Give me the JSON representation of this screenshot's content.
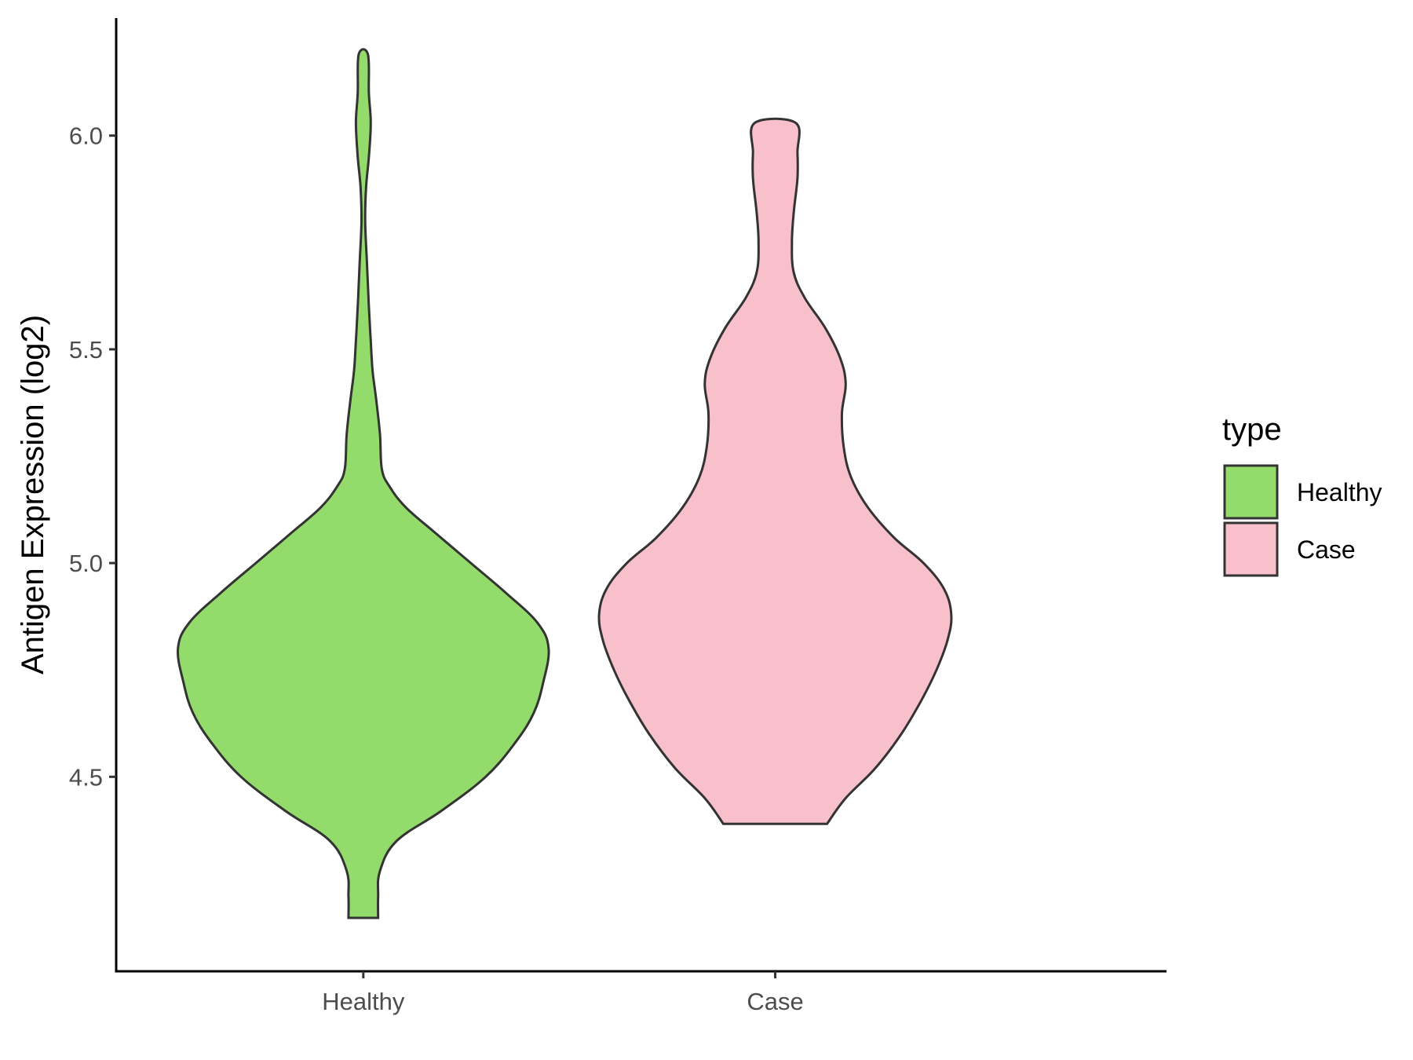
{
  "chart_data": {
    "type": "violin",
    "title": "",
    "xlabel": "",
    "ylabel": "Antigen Expression (log2)",
    "ylim": [
      4.045,
      6.275
    ],
    "y_ticks": [
      4.5,
      5.0,
      5.5,
      6.0
    ],
    "y_tick_labels": [
      "4.5",
      "5.0",
      "5.5",
      "6.0"
    ],
    "categories": [
      "Healthy",
      "Case"
    ],
    "grid": false,
    "legend": {
      "title": "type",
      "placement": "right",
      "entries": [
        "Healthy",
        "Case"
      ]
    },
    "series": [
      {
        "name": "Healthy",
        "color": "#93DB6B",
        "min": 4.17,
        "max": 6.19,
        "density_profile": [
          [
            4.17,
            0.08
          ],
          [
            4.22,
            0.08
          ],
          [
            4.28,
            0.09
          ],
          [
            4.35,
            0.18
          ],
          [
            4.42,
            0.42
          ],
          [
            4.5,
            0.66
          ],
          [
            4.58,
            0.82
          ],
          [
            4.65,
            0.92
          ],
          [
            4.72,
            0.97
          ],
          [
            4.8,
            1.0
          ],
          [
            4.86,
            0.94
          ],
          [
            4.93,
            0.77
          ],
          [
            5.0,
            0.58
          ],
          [
            5.07,
            0.39
          ],
          [
            5.13,
            0.23
          ],
          [
            5.18,
            0.14
          ],
          [
            5.22,
            0.1
          ],
          [
            5.3,
            0.09
          ],
          [
            5.38,
            0.07
          ],
          [
            5.45,
            0.05
          ],
          [
            5.52,
            0.04
          ],
          [
            5.6,
            0.03
          ],
          [
            5.7,
            0.02
          ],
          [
            5.8,
            0.01
          ],
          [
            5.88,
            0.015
          ],
          [
            5.95,
            0.03
          ],
          [
            6.03,
            0.04
          ],
          [
            6.1,
            0.03
          ],
          [
            6.19,
            0.025
          ]
        ]
      },
      {
        "name": "Case",
        "color": "#F8C0CB",
        "min": 4.39,
        "max": 6.03,
        "density_profile": [
          [
            4.39,
            0.28
          ],
          [
            4.45,
            0.38
          ],
          [
            4.52,
            0.54
          ],
          [
            4.6,
            0.68
          ],
          [
            4.68,
            0.79
          ],
          [
            4.75,
            0.87
          ],
          [
            4.82,
            0.93
          ],
          [
            4.88,
            0.95
          ],
          [
            4.94,
            0.91
          ],
          [
            5.0,
            0.8
          ],
          [
            5.06,
            0.64
          ],
          [
            5.13,
            0.5
          ],
          [
            5.2,
            0.41
          ],
          [
            5.27,
            0.37
          ],
          [
            5.35,
            0.36
          ],
          [
            5.42,
            0.38
          ],
          [
            5.48,
            0.35
          ],
          [
            5.55,
            0.27
          ],
          [
            5.62,
            0.16
          ],
          [
            5.68,
            0.1
          ],
          [
            5.75,
            0.09
          ],
          [
            5.82,
            0.1
          ],
          [
            5.9,
            0.12
          ],
          [
            5.96,
            0.12
          ],
          [
            6.03,
            0.11
          ]
        ]
      }
    ]
  }
}
